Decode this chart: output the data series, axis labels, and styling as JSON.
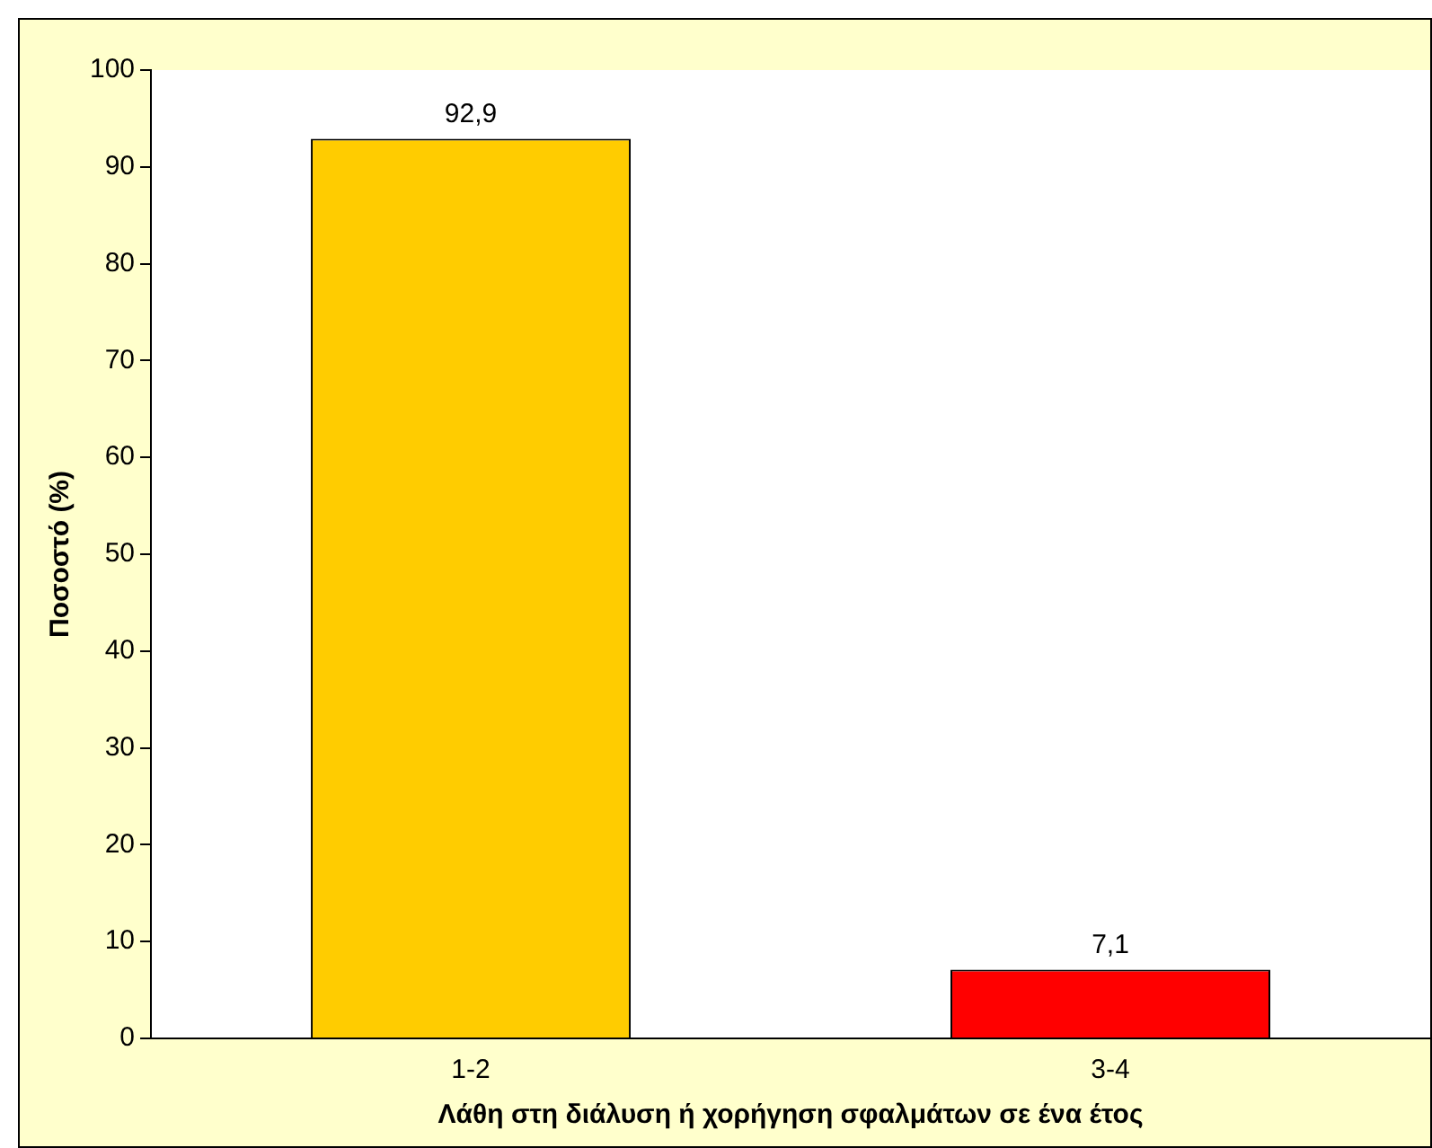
{
  "chart_data": {
    "type": "bar",
    "xlabel": "Λάθη στη διάλυση ή χορήγηση σφαλμάτων σε ένα έτος",
    "ylabel": "Ποσοστό (%)",
    "categories": [
      "1-2",
      "3-4"
    ],
    "colors": [
      "#ffcc00",
      "#ff0000"
    ],
    "values": [
      92.9,
      7.1
    ],
    "value_labels": [
      "92,9",
      "7,1"
    ],
    "ylim": [
      0,
      100
    ],
    "yticks": [
      0,
      10,
      20,
      30,
      40,
      50,
      60,
      70,
      80,
      90,
      100
    ],
    "grid": false,
    "legend": false
  }
}
